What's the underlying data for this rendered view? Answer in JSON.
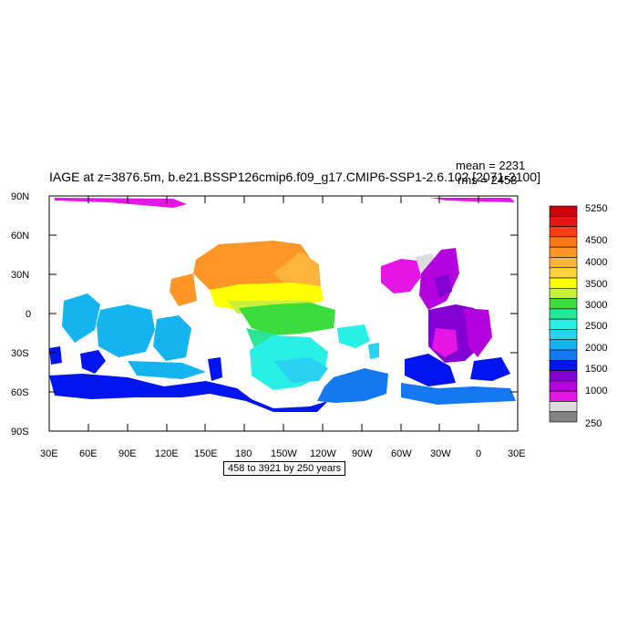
{
  "header": {
    "title": "IAGE at z=3876.5m, b.e21.BSSP126cmip6.f09_g17.CMIP6-SSP1-2.6.102 [2071-2100]",
    "mean": "mean = 2231",
    "rms": "rms = 2458"
  },
  "axes": {
    "y_ticks": [
      "90N",
      "60N",
      "30N",
      "0",
      "30S",
      "60S",
      "90S"
    ],
    "x_ticks": [
      "30E",
      "60E",
      "90E",
      "120E",
      "150E",
      "180",
      "150W",
      "120W",
      "90W",
      "60W",
      "30W",
      "0",
      "30E"
    ]
  },
  "footnote": "458 to 3921 by 250 years",
  "colorbar": {
    "labels": [
      "5250",
      "4500",
      "4000",
      "3500",
      "3000",
      "2500",
      "2000",
      "1500",
      "1000",
      "250"
    ],
    "colors": [
      "#c8000a",
      "#e61414",
      "#ff3c14",
      "#ff7814",
      "#ff9628",
      "#ffb43c",
      "#ffd23c",
      "#ffff00",
      "#c8f03c",
      "#3cdc3c",
      "#28e696",
      "#28f0e6",
      "#28d2f0",
      "#14b4f0",
      "#1478f0",
      "#0014f0",
      "#8200d2",
      "#b400dc",
      "#e614e6",
      "#dcdcdc",
      "#828282"
    ]
  },
  "map": {
    "projection": "cylindrical equidistant",
    "lon_range": [
      "30E",
      "30E"
    ],
    "lat_range": [
      "90S",
      "90N"
    ]
  }
}
